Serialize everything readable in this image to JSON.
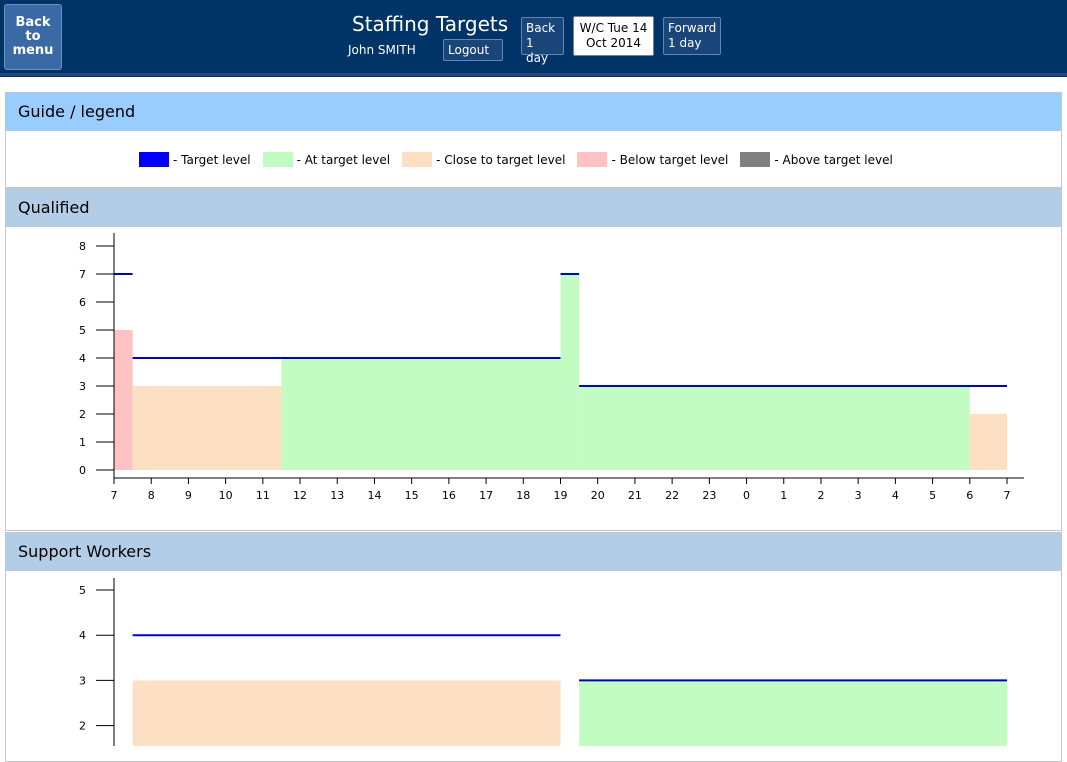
{
  "header": {
    "back_to_menu": "Back\nto\nmenu",
    "title": "Staffing Targets",
    "user": "John SMITH",
    "logout": "Logout",
    "back_day": "Back\n1 day",
    "week_commencing": "W/C Tue 14\nOct 2014",
    "forward_day": "Forward\n1 day"
  },
  "legend": {
    "title": "Guide / legend",
    "items": [
      {
        "label": "- Target level",
        "color": "#0000ff"
      },
      {
        "label": "- At target level",
        "color": "#c3fcc3"
      },
      {
        "label": "- Close to target level",
        "color": "#fde0c4"
      },
      {
        "label": "- Below target level",
        "color": "#fec2c2"
      },
      {
        "label": "- Above target level",
        "color": "#808080"
      }
    ]
  },
  "colors": {
    "target": "#0000cc",
    "at": "#c3fcc3",
    "close": "#fde0c4",
    "below": "#fec2c2",
    "above": "#808080"
  },
  "chart_data": [
    {
      "type": "bar",
      "title": "Qualified",
      "x_ticks": [
        "7",
        "8",
        "9",
        "10",
        "11",
        "12",
        "13",
        "14",
        "15",
        "16",
        "17",
        "18",
        "19",
        "20",
        "21",
        "22",
        "23",
        "0",
        "1",
        "2",
        "3",
        "4",
        "5",
        "6",
        "7"
      ],
      "y_ticks": [
        0,
        1,
        2,
        3,
        4,
        5,
        6,
        7,
        8
      ],
      "ylim": [
        0,
        8.5
      ],
      "bars": [
        {
          "start": 0,
          "end": 0.5,
          "value": 5,
          "status": "below"
        },
        {
          "start": 0.5,
          "end": 4.5,
          "value": 3,
          "status": "close"
        },
        {
          "start": 4.5,
          "end": 12,
          "value": 4,
          "status": "at"
        },
        {
          "start": 12,
          "end": 12.5,
          "value": 7,
          "status": "at"
        },
        {
          "start": 12.5,
          "end": 23,
          "value": 3,
          "status": "at"
        },
        {
          "start": 23,
          "end": 24,
          "value": 2,
          "status": "close"
        }
      ],
      "targets": [
        {
          "start": 0,
          "end": 0.5,
          "value": 7
        },
        {
          "start": 0.5,
          "end": 12,
          "value": 4
        },
        {
          "start": 12,
          "end": 12.5,
          "value": 7
        },
        {
          "start": 12.5,
          "end": 24,
          "value": 3
        }
      ]
    },
    {
      "type": "bar",
      "title": "Support Workers",
      "x_ticks": [],
      "y_ticks": [
        2,
        3,
        4,
        5
      ],
      "ylim": [
        1.5,
        5.25
      ],
      "bars": [
        {
          "start": 0.5,
          "end": 12,
          "value": 3,
          "status": "close"
        },
        {
          "start": 12.5,
          "end": 24,
          "value": 3,
          "status": "at"
        }
      ],
      "targets": [
        {
          "start": 0.5,
          "end": 12,
          "value": 4
        },
        {
          "start": 12.5,
          "end": 24,
          "value": 3
        }
      ]
    }
  ]
}
